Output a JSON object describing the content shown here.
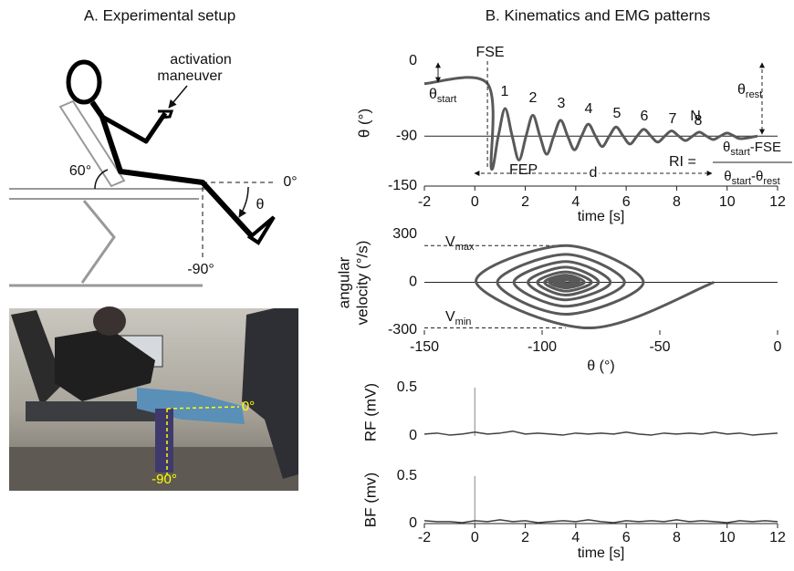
{
  "panel_a": {
    "title": "A. Experimental setup",
    "activation": [
      "activation",
      "maneuver"
    ],
    "hip_angle": "60°",
    "zero": "0°",
    "theta": "θ",
    "minus90": "-90°",
    "photo_zero": "0°",
    "photo_minus90": "-90°"
  },
  "panel_b": {
    "title": "B. Kinematics and EMG patterns"
  },
  "chart_data": [
    {
      "type": "line",
      "ylabel": "θ (°)",
      "xlabel": "time [s]",
      "xlim": [
        -2,
        12
      ],
      "ylim": [
        -150,
        0
      ],
      "xticks": [
        -2,
        0,
        2,
        4,
        6,
        8,
        10,
        12
      ],
      "yticks": [
        0,
        -90,
        -150
      ],
      "ref_line": -90,
      "x_axis_line": true,
      "color": "#595959",
      "x": [
        -2,
        0.5,
        0.65,
        0.93,
        1.2,
        1.48,
        1.75,
        2.03,
        2.3,
        2.58,
        2.85,
        3.13,
        3.4,
        3.68,
        3.95,
        4.23,
        4.5,
        4.78,
        5.05,
        5.33,
        5.6,
        5.88,
        6.15,
        6.43,
        6.7,
        6.98,
        7.25,
        7.53,
        7.8,
        8.08,
        8.35,
        8.63,
        8.9,
        9.18,
        9.45,
        9.73,
        10,
        10.28,
        10.55,
        11.2
      ],
      "values": [
        -27,
        -27,
        -128,
        -90,
        -56.9,
        -90,
        -118.8,
        -90,
        -65,
        -90,
        -111.8,
        -90,
        -71,
        -90,
        -106.5,
        -90,
        -75.7,
        -90,
        -102.5,
        -90,
        -79.1,
        -90,
        -99.5,
        -90,
        -81.8,
        -90,
        -97.2,
        -90,
        -83.8,
        -90,
        -95.4,
        -90,
        -85.3,
        -90,
        -94.1,
        -90,
        -86.4,
        -90,
        -93.1,
        -90
      ],
      "annotations": {
        "fse": "FSE",
        "fep": "FEP",
        "d": "d",
        "n": "N",
        "peaks": [
          "1",
          "2",
          "3",
          "4",
          "5",
          "6",
          "7",
          "8"
        ],
        "theta_start": [
          "θ",
          "start"
        ],
        "theta_rest": [
          "θ",
          "rest"
        ],
        "ri": {
          "lhs": "RI =",
          "num": [
            "θ",
            "start",
            "-FSE"
          ],
          "den": [
            "θ",
            "start",
            "-θ",
            "rest"
          ]
        }
      }
    },
    {
      "type": "line",
      "ylabel": [
        "angular",
        "velocity (°/s)"
      ],
      "xlabel": "θ (°)",
      "xlim": [
        -150,
        0
      ],
      "ylim": [
        -300,
        300
      ],
      "xticks": [
        -150,
        -100,
        -50,
        0
      ],
      "yticks": [
        300,
        0,
        -300
      ],
      "ref_line": 0,
      "x_axis_line": false,
      "color": "#595959",
      "x": [
        -27,
        -80,
        -128,
        -90,
        -57,
        -90,
        -119,
        -90,
        -65,
        -90,
        -112,
        -90,
        -71,
        -90,
        -106,
        -90,
        -76,
        -90,
        -102,
        -90,
        -79,
        -90,
        -99,
        -90,
        -82,
        -90,
        -97,
        -90,
        -84,
        -90,
        -95,
        -90,
        -86,
        -90,
        -93,
        -90
      ],
      "values": [
        0,
        -286,
        0,
        230,
        0,
        -200,
        0,
        175,
        0,
        -150,
        0,
        130,
        0,
        -110,
        0,
        95,
        0,
        -80,
        0,
        65,
        0,
        -55,
        0,
        45,
        0,
        -35,
        0,
        28,
        0,
        -20,
        0,
        15,
        0,
        -10,
        0,
        0
      ],
      "vmax": 230,
      "vmin": -286,
      "annotations": {
        "vmax": [
          "V",
          "max"
        ],
        "vmin": [
          "V",
          "min"
        ]
      }
    },
    {
      "type": "line",
      "ylabel": "RF (mV)",
      "xlim": [
        -2,
        12
      ],
      "ylim": [
        0,
        0.5
      ],
      "yticks": [
        0,
        0.5
      ],
      "onset": 0,
      "x_axis_line": false,
      "color": "#404040",
      "x": [
        -2,
        -1.5,
        -1,
        -0.5,
        0,
        0.5,
        1,
        1.5,
        2,
        2.5,
        3,
        3.5,
        4,
        4.5,
        5,
        5.5,
        6,
        6.5,
        7,
        7.5,
        8,
        8.5,
        9,
        9.5,
        10,
        10.5,
        11,
        11.5,
        12
      ],
      "values": [
        0.02,
        0.03,
        0.01,
        0.02,
        0.04,
        0.02,
        0.03,
        0.05,
        0.02,
        0.03,
        0.02,
        0.01,
        0.03,
        0.02,
        0.03,
        0.02,
        0.04,
        0.02,
        0.01,
        0.03,
        0.02,
        0.03,
        0.02,
        0.04,
        0.02,
        0.03,
        0.01,
        0.02,
        0.03
      ]
    },
    {
      "type": "line",
      "ylabel": "BF (mv)",
      "xlabel": "time [s]",
      "xlim": [
        -2,
        12
      ],
      "ylim": [
        0,
        0.5
      ],
      "xticks": [
        -2,
        0,
        2,
        4,
        6,
        8,
        10,
        12
      ],
      "yticks": [
        0,
        0.5
      ],
      "onset": 0,
      "x_axis_line": true,
      "color": "#404040",
      "x": [
        -2,
        -1.5,
        -1,
        -0.5,
        0,
        0.5,
        1,
        1.5,
        2,
        2.5,
        3,
        3.5,
        4,
        4.5,
        5,
        5.5,
        6,
        6.5,
        7,
        7.5,
        8,
        8.5,
        9,
        9.5,
        10,
        10.5,
        11,
        11.5,
        12
      ],
      "values": [
        0.03,
        0.02,
        0.02,
        0.01,
        0.03,
        0.02,
        0.04,
        0.02,
        0.03,
        0.01,
        0.02,
        0.03,
        0.02,
        0.04,
        0.02,
        0.01,
        0.03,
        0.02,
        0.03,
        0.02,
        0.04,
        0.02,
        0.03,
        0.02,
        0.01,
        0.03,
        0.02,
        0.03,
        0.02
      ]
    }
  ]
}
